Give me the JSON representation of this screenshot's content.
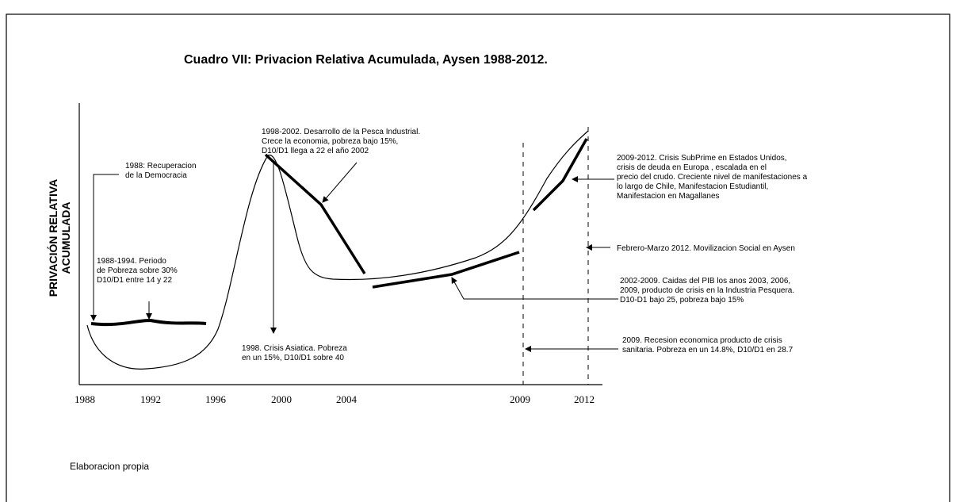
{
  "title": "Cuadro VII: Privacion Relativa Acumulada, Aysen 1988-2012.",
  "y_axis_label": [
    "PRIVACIÓN RELATIVA",
    "ACUMULADA"
  ],
  "x_labels": [
    "1988",
    "1992",
    "1996",
    "2000",
    "2004",
    "2009",
    "2012"
  ],
  "annotations": [
    {
      "lines": [
        "1988: Recuperacion",
        "de la Democracia"
      ]
    },
    {
      "lines": [
        "1998-2002. Desarrollo de la Pesca Industrial.",
        "Crece la economia, pobreza bajo 15%,",
        "D10/D1 llega a 22 el año 2002"
      ]
    },
    {
      "lines": [
        "1988-1994. Periodo",
        "de Pobreza sobre 30%",
        "D10/D1 entre 14 y 22"
      ]
    },
    {
      "lines": [
        "1998. Crisis Asiatica. Pobreza",
        "en un 15%, D10/D1 sobre 40"
      ]
    },
    {
      "lines": [
        "2009-2012. Crisis SubPrime en Estados Unidos,",
        "crisis de deuda en Europa , escalada en el",
        "precio del crudo. Creciente nivel de manifestaciones a",
        "lo largo de Chile, Manifestacion Estudiantil,",
        "Manifestacion en Magallanes"
      ]
    },
    {
      "lines": [
        "Febrero-Marzo 2012. Movilizacion Social en Aysen"
      ]
    },
    {
      "lines": [
        "2002-2009. Caidas del PIB los anos 2003, 2006,",
        "2009, producto de crisis en la Industria Pesquera.",
        "D10-D1 bajo 25, pobreza bajo 15%"
      ]
    },
    {
      "lines": [
        "2009. Recesion economica producto de crisis",
        "sanitaria. Pobreza en un 14.8%, D10/D1 en 28.7"
      ]
    }
  ],
  "source": "Elaboracion propia"
}
